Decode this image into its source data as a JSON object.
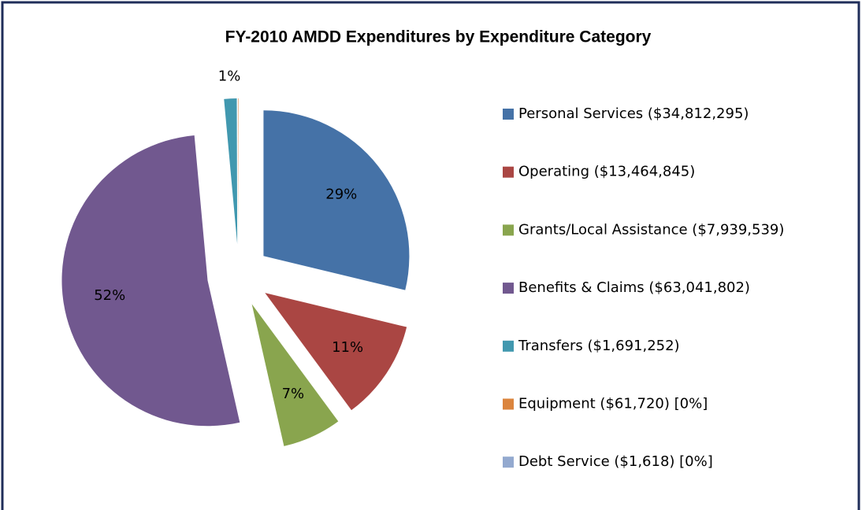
{
  "chart_data": {
    "type": "pie",
    "title": "FY-2010 AMDD Expenditures by Expenditure Category",
    "categories": [
      "Personal Services ($34,812,295)",
      "Operating ($13,464,845)",
      "Grants/Local Assistance ($7,939,539)",
      "Benefits & Claims ($63,041,802)",
      "Transfers ($1,691,252)",
      "Equipment ($61,720) [0%]",
      "Debt Service ($1,618) [0%]"
    ],
    "values": [
      28.77,
      11.13,
      6.56,
      52.09,
      1.4,
      0.05,
      0.0013
    ],
    "value_labels": [
      "29%",
      "11%",
      "7%",
      "52%",
      "1%",
      null,
      null
    ],
    "colors": [
      "#4572a7",
      "#aa4643",
      "#89a54e",
      "#71588f",
      "#4198af",
      "#db843d",
      "#93a9cf"
    ],
    "legend": "right"
  }
}
